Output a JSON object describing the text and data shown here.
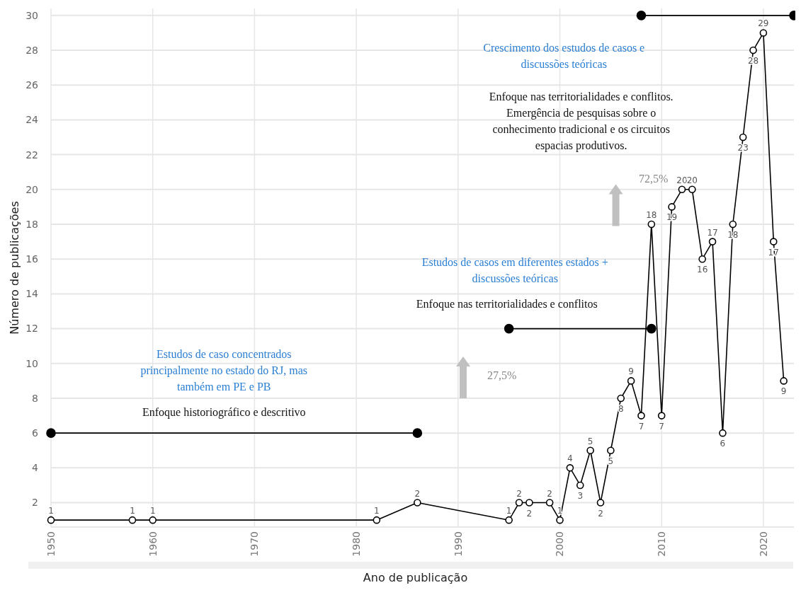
{
  "chart_data": {
    "type": "line",
    "xlabel": "Ano de publicação",
    "ylabel": "Número de publicações",
    "xlim": [
      1950,
      2023
    ],
    "ylim": [
      0.6,
      30.4
    ],
    "xticks": [
      1950,
      1960,
      1970,
      1980,
      1990,
      2000,
      2010,
      2020
    ],
    "yticks": [
      2,
      4,
      6,
      8,
      10,
      12,
      14,
      16,
      18,
      20,
      22,
      24,
      26,
      28,
      30
    ],
    "grid": true,
    "series": [
      {
        "color": "#000000",
        "marker": "circle",
        "data_labels": true,
        "x": [
          1950,
          1958,
          1960,
          1982,
          1986,
          1995,
          1996,
          1997,
          1999,
          2000,
          2001,
          2002,
          2003,
          2004,
          2005,
          2006,
          2007,
          2008,
          2009,
          2010,
          2011,
          2012,
          2013,
          2014,
          2015,
          2016,
          2017,
          2018,
          2019,
          2020,
          2021,
          2022
        ],
        "values": [
          1,
          1,
          1,
          1,
          2,
          1,
          2,
          2,
          2,
          1,
          4,
          3,
          5,
          2,
          5,
          8,
          9,
          7,
          18,
          7,
          19,
          20,
          20,
          16,
          17,
          6,
          18,
          23,
          28,
          29,
          17,
          9
        ]
      },
      {
        "color": "#000000",
        "marker": "circle",
        "x": [
          1950,
          1986
        ],
        "values": [
          6,
          6
        ]
      },
      {
        "color": "#000000",
        "marker": "circle",
        "x": [
          1995,
          2009
        ],
        "values": [
          12,
          12
        ]
      },
      {
        "color": "#000000",
        "marker": "circle",
        "x": [
          2008,
          2023
        ],
        "values": [
          30,
          30
        ]
      }
    ],
    "annotations": [
      "Estudos de caso concentrados\nprincipalmente no estado do RJ, mas\ntambém em PE e PB",
      "Enfoque historiográfico e descritivo",
      "27,5%",
      "Estudos de casos em diferentes estados +\ndiscussões teóricas",
      "Enfoque nas territorialidades e conflitos",
      "72,5%",
      "Crescimento dos estudos de casos e\ndiscussões teóricas",
      "Enfoque nas territorialidades e conflitos.\nEmergência de pesquisas sobre o\nconhecimento tradicional e os circuitos\nespacias produtivos."
    ]
  }
}
